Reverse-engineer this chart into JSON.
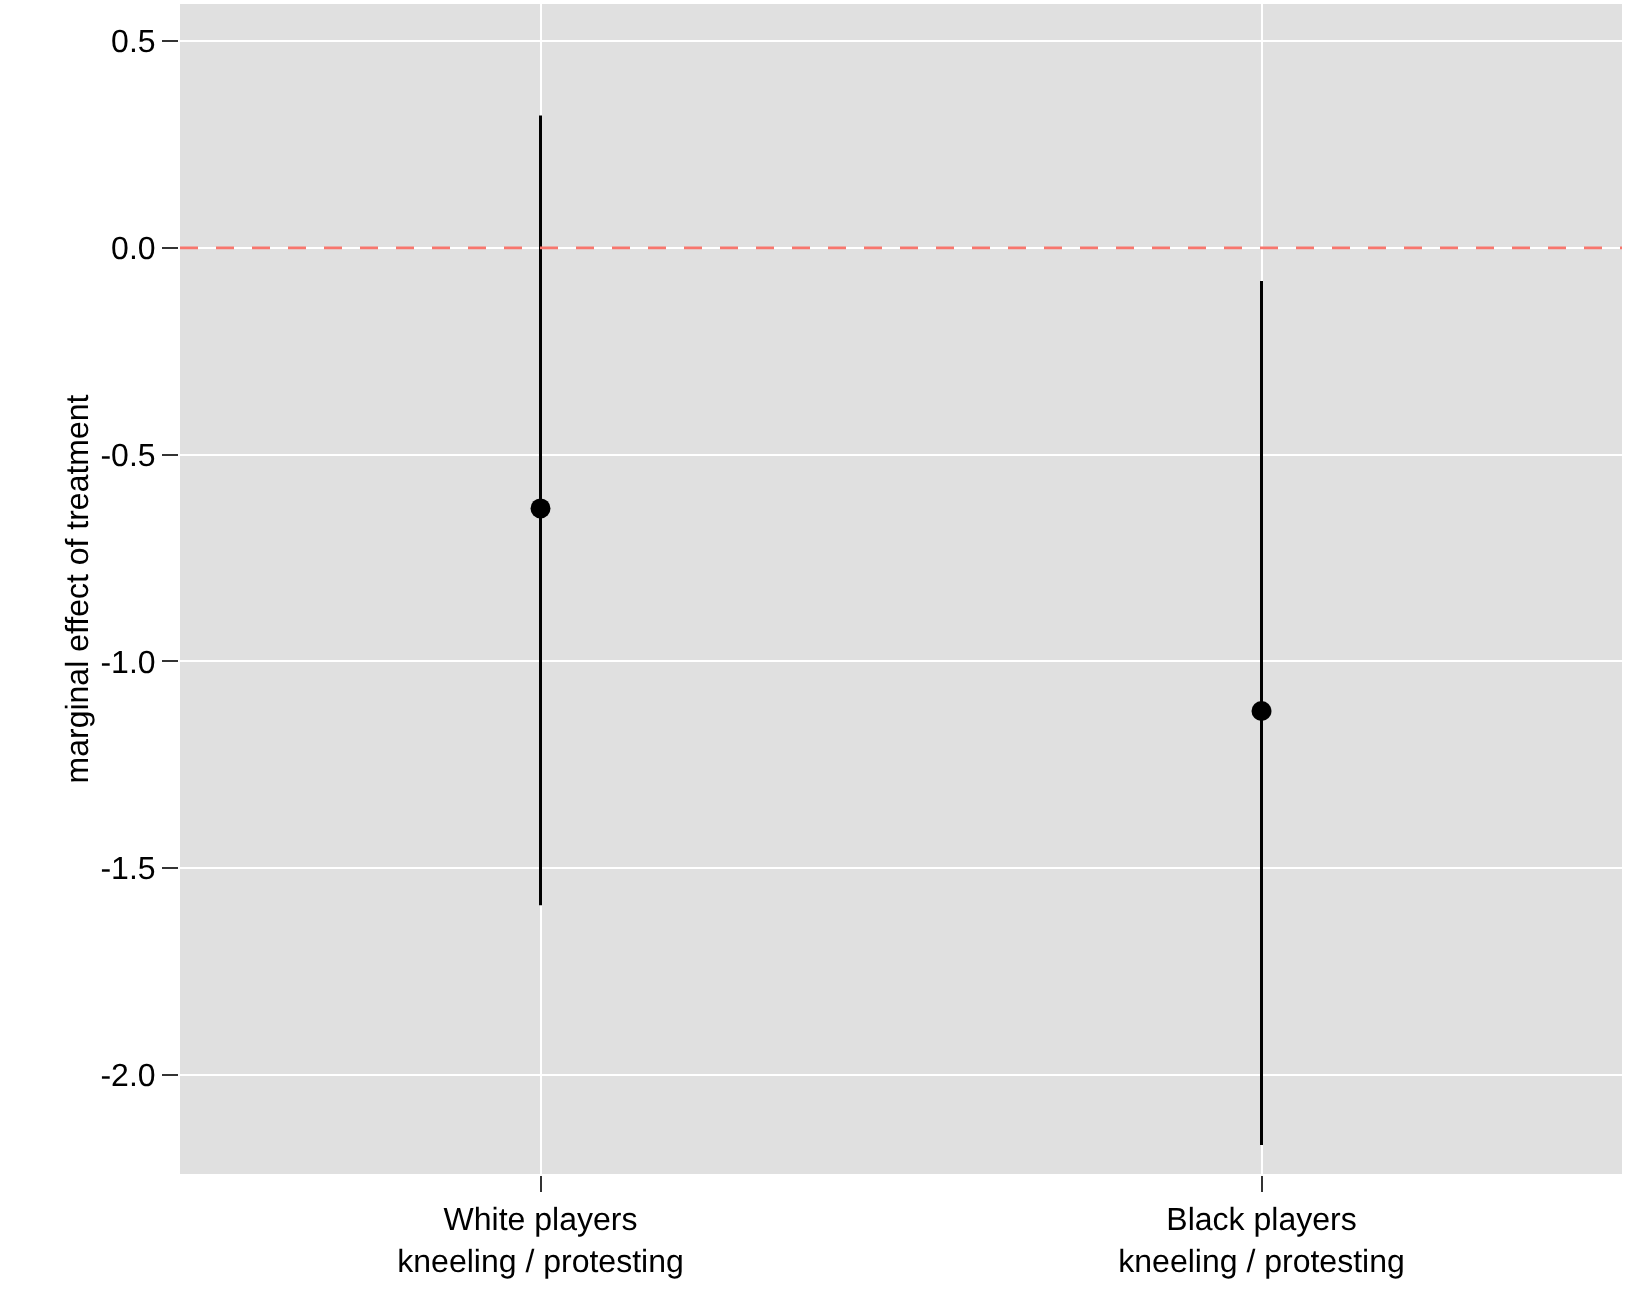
{
  "chart_data": {
    "type": "scatter",
    "ylabel": "marginal effect of treatment",
    "categories": [
      "White players\nkneeling / protesting",
      "Black players\nkneeling / protesting"
    ],
    "values": [
      -0.63,
      -1.12
    ],
    "errors": [
      [
        -1.59,
        0.32
      ],
      [
        -2.17,
        -0.08
      ]
    ],
    "color": "#000000",
    "marker": "circle",
    "ylim": [
      -2.24,
      0.59
    ],
    "yticks": [
      {
        "value": 0.5,
        "label": "0.5"
      },
      {
        "value": 0,
        "label": "0.0"
      },
      {
        "value": -0.5,
        "label": "-0.5"
      },
      {
        "value": -1,
        "label": "-1.0"
      },
      {
        "value": -1.5,
        "label": "-1.5"
      },
      {
        "value": -2,
        "label": "-2.0"
      }
    ],
    "ref_lines": [
      {
        "axis": "y",
        "value": 0,
        "color": "#f8766d",
        "line_style": "dashed"
      }
    ],
    "grid": true
  }
}
